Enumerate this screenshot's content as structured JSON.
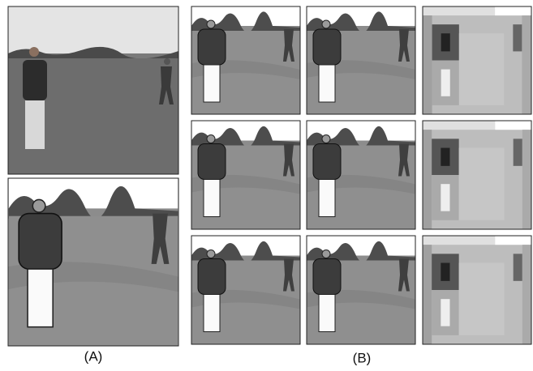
{
  "labels": [
    "(A)",
    "(B)"
  ]
}
